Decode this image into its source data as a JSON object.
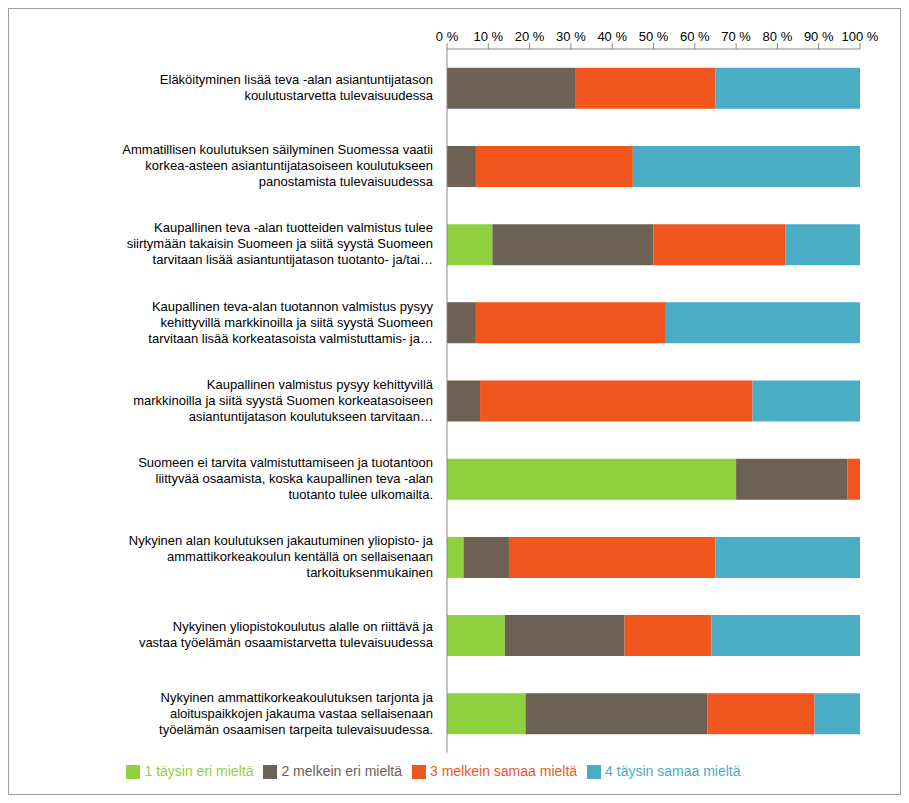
{
  "chart_data": {
    "type": "bar",
    "orientation": "horizontal",
    "stacked": true,
    "grid": false,
    "legend": "bottom",
    "categories": [
      "Eläköityminen lisää teva -alan asiantuntijatason koulutustarvetta tulevaisuudessa",
      "Ammatillisen koulutuksen säilyminen Suomessa vaatii korkea-asteen asiantuntijatasoiseen koulutukseen panostamista tulevaisuudessa",
      "Kaupallinen teva -alan tuotteiden valmistus tulee siirtymään takaisin Suomeen ja siitä syystä Suomeen tarvitaan lisää asiantuntijatason tuotanto- ja/tai…",
      "Kaupallinen teva-alan tuotannon valmistus pysyy kehittyvillä markkinoilla ja siitä syystä Suomeen tarvitaan lisää korkeatasoista valmistuttamis- ja…",
      "Kaupallinen valmistus pysyy kehittyvillä markkinoilla ja siitä syystä Suomen korkeatasoiseen asiantuntijatason koulutukseen tarvitaan…",
      "Suomeen ei tarvita valmistuttamiseen ja tuotantoon liittyvää osaamista, koska kaupallinen teva -alan tuotanto tulee ulkomailta.",
      "Nykyinen alan koulutuksen jakautuminen yliopisto- ja ammattikorkeakoulun kentällä on sellaisenaan tarkoituksenmukainen",
      "Nykyinen yliopistokoulutus alalle on riittävä ja vastaa työelämän osaamistarvetta tulevaisuudessa",
      "Nykyinen ammattikorkeakoulutuksen tarjonta ja aloituspaikkojen jakauma vastaa sellaisenaan työelämän osaamisen tarpeita tulevaisuudessa."
    ],
    "series": [
      {
        "name": "1 täysin eri mieltä",
        "color": "#8fd13f",
        "values": [
          0,
          0,
          11,
          0,
          0,
          70,
          4,
          14,
          19
        ]
      },
      {
        "name": "2 melkein eri mieltä",
        "color": "#6d6055",
        "values": [
          31,
          7,
          39,
          7,
          8,
          27,
          11,
          29,
          44
        ]
      },
      {
        "name": "3 melkein samaa mieltä",
        "color": "#f0561d",
        "values": [
          34,
          38,
          32,
          46,
          66,
          3,
          50,
          21,
          26
        ]
      },
      {
        "name": "4 täysin samaa mieltä",
        "color": "#4bacc6",
        "values": [
          35,
          55,
          18,
          47,
          26,
          0,
          35,
          36,
          11
        ]
      }
    ],
    "xlim": [
      0,
      100
    ],
    "xticks": [
      {
        "value": 0,
        "label": "0 %"
      },
      {
        "value": 10,
        "label": "10 %"
      },
      {
        "value": 20,
        "label": "20 %"
      },
      {
        "value": 30,
        "label": "30 %"
      },
      {
        "value": 40,
        "label": "40 %"
      },
      {
        "value": 50,
        "label": "50 %"
      },
      {
        "value": 60,
        "label": "60 %"
      },
      {
        "value": 70,
        "label": "70 %"
      },
      {
        "value": 80,
        "label": "80 %"
      },
      {
        "value": 90,
        "label": "90 %"
      },
      {
        "value": 100,
        "label": "100 %"
      }
    ]
  }
}
